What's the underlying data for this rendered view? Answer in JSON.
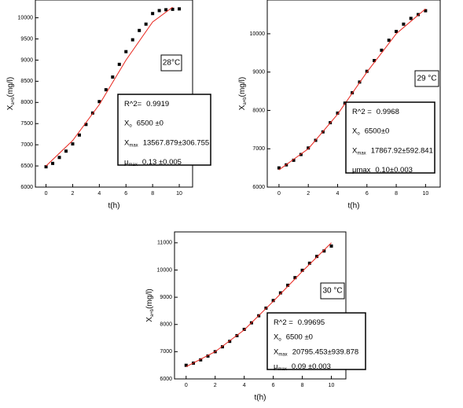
{
  "chart_data": [
    {
      "type": "line",
      "xlabel": "t(h)",
      "ylabel": {
        "text": "X",
        "sub": "a+b",
        "unit": "(mg/l)"
      },
      "xlim": [
        -0.8,
        11
      ],
      "ylim": [
        6000,
        10420
      ],
      "xticks": [
        0,
        2,
        4,
        6,
        8,
        10
      ],
      "yticks": [
        6000,
        6500,
        7000,
        7500,
        8000,
        8500,
        9000,
        9500,
        10000
      ],
      "series": [
        {
          "style": "points",
          "color": "#000000",
          "x": [
            0,
            0.5,
            1,
            1.5,
            2,
            2.5,
            3,
            3.5,
            4,
            4.5,
            5,
            5.5,
            6,
            6.5,
            7,
            7.5,
            8,
            8.5,
            9,
            9.5,
            10
          ],
          "values": [
            6480,
            6560,
            6700,
            6850,
            7020,
            7230,
            7480,
            7750,
            8020,
            8300,
            8600,
            8900,
            9200,
            9480,
            9700,
            9850,
            10100,
            10170,
            10190,
            10200,
            10210
          ]
        },
        {
          "style": "line",
          "color": "#e8241c",
          "x": [
            0,
            2,
            4,
            6,
            8,
            9.5
          ],
          "values": [
            6500,
            7100,
            7950,
            9000,
            9900,
            10250
          ]
        }
      ],
      "label": "28°C",
      "stats": [
        {
          "label": "R^2=",
          "value": "0.9919"
        },
        {
          "label": "X",
          "sub": "o",
          "value": "6500 ±0"
        },
        {
          "label": "X",
          "sub": "max",
          "value": "13567.879±306.755"
        },
        {
          "label": "μ",
          "sub": "max",
          "value": "0.13 ±0.005"
        }
      ]
    },
    {
      "type": "line",
      "xlabel": "t(h)",
      "ylabel": {
        "text": "X",
        "sub": "a+b",
        "unit": "(mg/l)"
      },
      "xlim": [
        -0.8,
        11
      ],
      "ylim": [
        6000,
        10880
      ],
      "xticks": [
        0,
        2,
        4,
        6,
        8,
        10
      ],
      "yticks": [
        6000,
        7000,
        8000,
        9000,
        10000
      ],
      "series": [
        {
          "style": "points",
          "color": "#000000",
          "x": [
            0,
            0.5,
            1,
            1.5,
            2,
            2.5,
            3,
            3.5,
            4,
            4.5,
            5,
            5.5,
            6,
            6.5,
            7,
            7.5,
            8,
            8.5,
            9,
            9.5,
            10
          ],
          "values": [
            6500,
            6580,
            6700,
            6850,
            7020,
            7220,
            7440,
            7680,
            7930,
            8190,
            8460,
            8740,
            9020,
            9300,
            9570,
            9830,
            10060,
            10250,
            10400,
            10500,
            10600
          ]
        },
        {
          "style": "line",
          "color": "#e8241c",
          "x": [
            0,
            2,
            4,
            6,
            8,
            10
          ],
          "values": [
            6450,
            7000,
            7900,
            9000,
            10000,
            10650
          ]
        }
      ],
      "label": "29 °C",
      "stats": [
        {
          "label": "R^2 =",
          "value": "0.9968"
        },
        {
          "label": "X",
          "sub": "o",
          "value": "6500±0"
        },
        {
          "label": "X",
          "sub": "max",
          "value": "17867.92±592.841"
        },
        {
          "label": "μmax",
          "value": "0.10±0.003"
        }
      ]
    },
    {
      "type": "line",
      "xlabel": "t(h)",
      "ylabel": {
        "text": "X",
        "sub": "a+b",
        "unit": "(mg/l)"
      },
      "xlim": [
        -0.8,
        11
      ],
      "ylim": [
        6000,
        11400
      ],
      "xticks": [
        0,
        2,
        4,
        6,
        8,
        10
      ],
      "yticks": [
        6000,
        7000,
        8000,
        9000,
        10000,
        11000
      ],
      "series": [
        {
          "style": "points",
          "color": "#000000",
          "x": [
            0,
            0.5,
            1,
            1.5,
            2,
            2.5,
            3,
            3.5,
            4,
            4.5,
            5,
            5.5,
            6,
            6.5,
            7,
            7.5,
            8,
            8.5,
            9,
            9.5,
            10
          ],
          "values": [
            6500,
            6580,
            6700,
            6840,
            7000,
            7180,
            7380,
            7590,
            7820,
            8060,
            8320,
            8600,
            8880,
            9160,
            9440,
            9720,
            9990,
            10250,
            10500,
            10700,
            10880
          ]
        },
        {
          "style": "line",
          "color": "#e8241c",
          "x": [
            0,
            2,
            4,
            6,
            8,
            10
          ],
          "values": [
            6450,
            7000,
            7800,
            8850,
            9950,
            11000
          ]
        }
      ],
      "label": "30 °C",
      "stats": [
        {
          "label": "R^2 =",
          "value": "0.99695"
        },
        {
          "label": "X",
          "sub": "o",
          "value": "6500 ±0"
        },
        {
          "label": "X",
          "sub": "max",
          "value": "20795.453±939.878"
        },
        {
          "label": "μ",
          "sub": "max",
          "value": "0.09 ±0.003"
        }
      ]
    }
  ]
}
